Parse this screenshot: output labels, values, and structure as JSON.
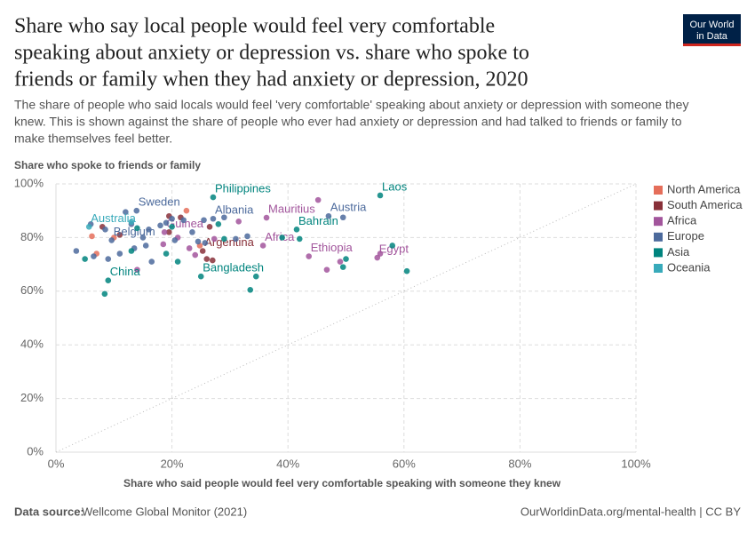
{
  "chart_data": {
    "type": "scatter",
    "title": [
      "Share who say local people would feel very comfortable",
      "speaking about anxiety or depression vs. share who spoke to",
      "friends or family when they had anxiety or depression, 2020"
    ],
    "subtitle": [
      "The share of people who said locals would feel 'very comfortable' speaking about anxiety or depression with someone they",
      "knew. This is shown against the share of people who ever had anxiety or depression and had talked to friends or family to",
      "make themselves feel better."
    ],
    "y_label": "Share who spoke to friends or family",
    "x_label": "Share who said people would feel very comfortable speaking with someone they knew",
    "source_label": "Data source:",
    "source": "Wellcome Global Monitor (2021)",
    "footer_right": "OurWorldinData.org/mental-health | CC BY",
    "logo": [
      "Our World",
      "in Data"
    ],
    "xlim": [
      0,
      100
    ],
    "ylim": [
      0,
      100
    ],
    "xticks": [
      {
        "value": 0,
        "label": "0%"
      },
      {
        "value": 20,
        "label": "20%"
      },
      {
        "value": 40,
        "label": "40%"
      },
      {
        "value": 60,
        "label": "60%"
      },
      {
        "value": 80,
        "label": "80%"
      },
      {
        "value": 100,
        "label": "100%"
      }
    ],
    "yticks": [
      {
        "value": 0,
        "label": "0%"
      },
      {
        "value": 20,
        "label": "20%"
      },
      {
        "value": 40,
        "label": "40%"
      },
      {
        "value": 60,
        "label": "60%"
      },
      {
        "value": 80,
        "label": "80%"
      },
      {
        "value": 100,
        "label": "100%"
      }
    ],
    "grid": true,
    "legend": "right",
    "series": [
      {
        "name": "North America",
        "color": "#e56e5a",
        "x": [
          6.2,
          10,
          22.5,
          24.8,
          7
        ],
        "values": [
          80.5,
          80,
          90,
          77,
          74
        ],
        "labels": [
          null,
          null,
          null,
          null,
          null
        ]
      },
      {
        "name": "South America",
        "color": "#883039",
        "x": [
          8,
          11,
          19.5,
          21.5,
          19.5,
          25.3,
          26,
          27,
          26.5
        ],
        "values": [
          84,
          81,
          88,
          87.5,
          82,
          75,
          72,
          71.5,
          84
        ],
        "labels": [
          null,
          null,
          null,
          null,
          null,
          "Argentina",
          null,
          null,
          null
        ]
      },
      {
        "name": "Africa",
        "color": "#a2559c",
        "x": [
          36.3,
          18.7,
          43.6,
          55.4,
          35.7,
          45.2,
          46.7,
          55.9,
          21,
          27.3,
          31.5,
          18.5,
          23,
          14,
          24,
          49
        ],
        "values": [
          87.4,
          82,
          73,
          72.5,
          77,
          94,
          68,
          74,
          80,
          79.5,
          86,
          77.5,
          76,
          68,
          73.5,
          71
        ],
        "labels": [
          "Mauritius",
          "Guinea",
          "Ethiopia",
          "Egypt",
          "Africa",
          null,
          null,
          null,
          null,
          null,
          null,
          null,
          null,
          null,
          null,
          null
        ]
      },
      {
        "name": "Europe",
        "color": "#4c6a9c",
        "x": [
          13.9,
          47,
          27.1,
          9.6,
          3.5,
          6,
          8.5,
          12,
          13,
          15,
          16,
          16.5,
          18,
          19,
          20,
          22,
          23.5,
          24.5,
          25.5,
          29,
          31,
          33,
          49.5,
          11,
          13.5,
          9,
          6.5,
          15.5,
          20.5,
          25.7
        ],
        "values": [
          90,
          88,
          87,
          79,
          75,
          85,
          83,
          89.5,
          85,
          80,
          83,
          71,
          84.5,
          85.5,
          87,
          86.5,
          82,
          78.5,
          86.5,
          87.5,
          79.5,
          80.5,
          87.5,
          74,
          76,
          72,
          73,
          77,
          79,
          78
        ],
        "labels": [
          "Sweden",
          "Austria",
          "Albania",
          "Belgium",
          null,
          null,
          null,
          null,
          null,
          null,
          null,
          null,
          null,
          null,
          null,
          null,
          null,
          null,
          null,
          null,
          null,
          null,
          null,
          null,
          null,
          null,
          null,
          null,
          null,
          null
        ]
      },
      {
        "name": "Asia",
        "color": "#00847e",
        "x": [
          55.9,
          27.1,
          41.5,
          25,
          9,
          8.4,
          5,
          13,
          19,
          20,
          21,
          28,
          29,
          33.5,
          34.5,
          39,
          42,
          49.5,
          50,
          58,
          60.5,
          14
        ],
        "values": [
          95.7,
          95,
          83,
          65.5,
          64,
          59,
          72,
          75,
          74,
          84,
          71,
          85,
          79.5,
          60.5,
          65.5,
          80,
          79.5,
          69,
          72,
          77,
          67.5,
          83.5
        ],
        "labels": [
          "Laos",
          "Philippines",
          "Bahrain",
          "Bangladesh",
          "China",
          null,
          null,
          null,
          null,
          null,
          null,
          null,
          null,
          null,
          null,
          null,
          null,
          null,
          null,
          null,
          null,
          null
        ]
      },
      {
        "name": "Oceania",
        "color": "#38aaba",
        "x": [
          5.7,
          13
        ],
        "values": [
          84,
          85.8
        ],
        "labels": [
          "Australia",
          null
        ]
      }
    ]
  }
}
